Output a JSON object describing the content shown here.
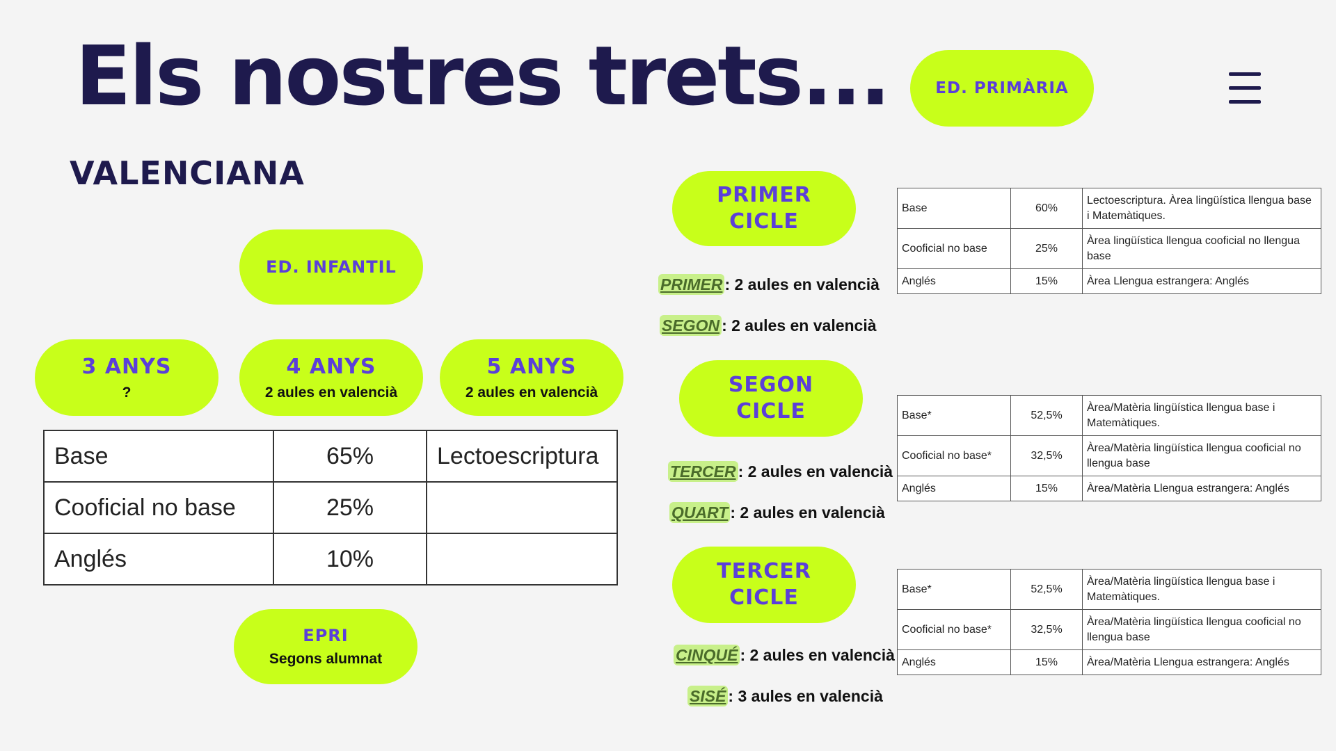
{
  "header": {
    "title": "Els nostres trets...",
    "subtitle": "VALENCIANA",
    "badge": "ED. PRIMÀRIA"
  },
  "infantil": {
    "label": "ED. INFANTIL",
    "years": [
      {
        "label": "3 ANYS",
        "sub": "?"
      },
      {
        "label": "4 ANYS",
        "sub": "2 aules en valencià"
      },
      {
        "label": "5 ANYS",
        "sub": "2 aules en valencià"
      }
    ],
    "table": [
      [
        "Base",
        "65%",
        "Lectoescriptura"
      ],
      [
        "Cooficial no base",
        "25%",
        ""
      ],
      [
        "Anglés",
        "10%",
        ""
      ]
    ],
    "epri": {
      "label": "EPRI",
      "sub": "Segons alumnat"
    }
  },
  "cycles": [
    {
      "label_line1": "PRIMER",
      "label_line2": "CICLE",
      "items": [
        {
          "key": "PRIMER",
          "text": ": 2 aules en valencià"
        },
        {
          "key": "SEGON",
          "text": ": 2 aules en valencià"
        }
      ],
      "table": [
        [
          "Base",
          "60%",
          "Lectoescriptura. Àrea lingüística llengua base i Matemàtiques."
        ],
        [
          "Cooficial no base",
          "25%",
          "Àrea lingüística llengua cooficial no llengua base"
        ],
        [
          "Anglés",
          "15%",
          "Àrea Llengua estrangera: Anglés"
        ]
      ]
    },
    {
      "label_line1": "SEGON",
      "label_line2": "CICLE",
      "items": [
        {
          "key": "TERCER",
          "text": ": 2 aules en valencià"
        },
        {
          "key": "QUART",
          "text": ": 2 aules en valencià"
        }
      ],
      "table": [
        [
          "Base*",
          "52,5%",
          "Àrea/Matèria lingüística llengua base i Matemàtiques."
        ],
        [
          "Cooficial no base*",
          "32,5%",
          "Àrea/Matèria lingüística llengua cooficial no llengua base"
        ],
        [
          "Anglés",
          "15%",
          "Àrea/Matèria Llengua estrangera: Anglés"
        ]
      ]
    },
    {
      "label_line1": "TERCER",
      "label_line2": "CICLE",
      "items": [
        {
          "key": "CINQUÉ",
          "text": ": 2 aules en valencià"
        },
        {
          "key": "SISÉ",
          "text": ": 3 aules en valencià"
        }
      ],
      "table": [
        [
          "Base*",
          "52,5%",
          "Àrea/Matèria lingüística llengua base i Matemàtiques."
        ],
        [
          "Cooficial no base*",
          "32,5%",
          "Àrea/Matèria lingüística llengua cooficial no llengua base"
        ],
        [
          "Anglés",
          "15%",
          "Àrea/Matèria Llengua estrangera: Anglés"
        ]
      ]
    }
  ],
  "icons": {
    "menu": "hamburger-menu-icon"
  },
  "colors": {
    "accent": "#c8ff1a",
    "text": "#1e1a4d",
    "label": "#5b3fd9"
  }
}
